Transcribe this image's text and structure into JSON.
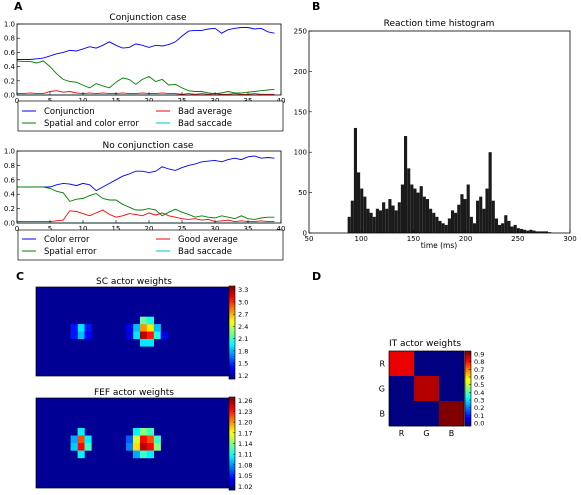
{
  "panel_letters": {
    "a": "A",
    "b": "B",
    "c": "C",
    "d": "D"
  },
  "colors": {
    "blue": "#0000ff",
    "red": "#ff0000",
    "green": "#008000",
    "cyan": "#00bfbf",
    "bar": "#1a1a1a"
  },
  "chart_data": [
    {
      "id": "conj",
      "type": "line",
      "title": "Conjunction case",
      "xlim": [
        0,
        40
      ],
      "ylim": [
        0,
        1.0
      ],
      "xticks": [
        "0",
        "5",
        "10",
        "15",
        "20",
        "25",
        "30",
        "35",
        "40"
      ],
      "yticks": [
        "0.0",
        "0.2",
        "0.4",
        "0.6",
        "0.8",
        "1.0"
      ],
      "legend": {
        "placement": "below",
        "entries": [
          "Conjunction",
          "Bad average",
          "Spatial and color error",
          "Bad saccade"
        ]
      },
      "series": [
        {
          "name": "Conjunction",
          "color": "blue",
          "x": [
            0,
            1,
            2,
            3,
            4,
            5,
            6,
            7,
            8,
            9,
            10,
            11,
            12,
            13,
            14,
            15,
            16,
            17,
            18,
            19,
            20,
            21,
            22,
            23,
            24,
            25,
            26,
            27,
            28,
            29,
            30,
            31,
            32,
            33,
            34,
            35,
            36,
            37,
            38,
            39
          ],
          "y": [
            0.5,
            0.5,
            0.5,
            0.51,
            0.52,
            0.55,
            0.58,
            0.6,
            0.63,
            0.62,
            0.65,
            0.68,
            0.66,
            0.7,
            0.75,
            0.7,
            0.66,
            0.67,
            0.72,
            0.7,
            0.67,
            0.7,
            0.69,
            0.71,
            0.75,
            0.83,
            0.9,
            0.91,
            0.91,
            0.93,
            0.94,
            0.87,
            0.92,
            0.94,
            0.95,
            0.95,
            0.93,
            0.94,
            0.89,
            0.87
          ]
        },
        {
          "name": "Bad average",
          "color": "red",
          "x": [
            0,
            1,
            2,
            3,
            4,
            5,
            6,
            7,
            8,
            9,
            10,
            11,
            12,
            13,
            14,
            15,
            16,
            17,
            18,
            19,
            20,
            21,
            22,
            23,
            24,
            25,
            26,
            27,
            28,
            29,
            30,
            31,
            32,
            33,
            34,
            35,
            36,
            37,
            38,
            39
          ],
          "y": [
            0.02,
            0.02,
            0.03,
            0.02,
            0.02,
            0.05,
            0.06,
            0.04,
            0.05,
            0.03,
            0.02,
            0.03,
            0.02,
            0.03,
            0.02,
            0.02,
            0.03,
            0.02,
            0.02,
            0.03,
            0.02,
            0.02,
            0.03,
            0.02,
            0.02,
            0.01,
            0.02,
            0.01,
            0.02,
            0.01,
            0.02,
            0.01,
            0.01,
            0.02,
            0.01,
            0.01,
            0.02,
            0.01,
            0.01,
            0.01
          ]
        },
        {
          "name": "Spatial and color error",
          "color": "green",
          "x": [
            0,
            1,
            2,
            3,
            4,
            5,
            6,
            7,
            8,
            9,
            10,
            11,
            12,
            13,
            14,
            15,
            16,
            17,
            18,
            19,
            20,
            21,
            22,
            23,
            24,
            25,
            26,
            27,
            28,
            29,
            30,
            31,
            32,
            33,
            34,
            35,
            36,
            37,
            38,
            39
          ],
          "y": [
            0.48,
            0.47,
            0.47,
            0.45,
            0.48,
            0.4,
            0.3,
            0.22,
            0.19,
            0.18,
            0.14,
            0.1,
            0.16,
            0.13,
            0.1,
            0.18,
            0.24,
            0.22,
            0.15,
            0.22,
            0.26,
            0.19,
            0.22,
            0.14,
            0.15,
            0.1,
            0.06,
            0.05,
            0.05,
            0.03,
            0.02,
            0.03,
            0.05,
            0.03,
            0.03,
            0.04,
            0.05,
            0.06,
            0.07,
            0.08
          ]
        },
        {
          "name": "Bad saccade",
          "color": "cyan",
          "x": [
            0,
            39
          ],
          "y": [
            0.0,
            0.0
          ]
        }
      ]
    },
    {
      "id": "noconj",
      "type": "line",
      "title": "No conjunction case",
      "xlim": [
        0,
        40
      ],
      "ylim": [
        0,
        1.0
      ],
      "xticks": [
        "0",
        "5",
        "10",
        "15",
        "20",
        "25",
        "30",
        "35",
        "40"
      ],
      "yticks": [
        "0.0",
        "0.2",
        "0.4",
        "0.6",
        "0.8",
        "1.0"
      ],
      "legend": {
        "placement": "below",
        "entries": [
          "Color error",
          "Good average",
          "Spatial error",
          "Bad saccade"
        ]
      },
      "series": [
        {
          "name": "Color error",
          "color": "blue",
          "x": [
            0,
            1,
            2,
            3,
            4,
            5,
            6,
            7,
            8,
            9,
            10,
            11,
            12,
            13,
            14,
            15,
            16,
            17,
            18,
            19,
            20,
            21,
            22,
            23,
            24,
            25,
            26,
            27,
            28,
            29,
            30,
            31,
            32,
            33,
            34,
            35,
            36,
            37,
            38,
            39
          ],
          "y": [
            0.5,
            0.5,
            0.5,
            0.5,
            0.5,
            0.5,
            0.53,
            0.55,
            0.54,
            0.52,
            0.55,
            0.53,
            0.45,
            0.5,
            0.55,
            0.6,
            0.65,
            0.68,
            0.72,
            0.72,
            0.7,
            0.72,
            0.78,
            0.75,
            0.73,
            0.77,
            0.8,
            0.82,
            0.85,
            0.86,
            0.87,
            0.85,
            0.88,
            0.9,
            0.88,
            0.92,
            0.93,
            0.9,
            0.91,
            0.9
          ]
        },
        {
          "name": "Good average",
          "color": "red",
          "x": [
            0,
            1,
            2,
            3,
            4,
            5,
            6,
            7,
            8,
            9,
            10,
            11,
            12,
            13,
            14,
            15,
            16,
            17,
            18,
            19,
            20,
            21,
            22,
            23,
            24,
            25,
            26,
            27,
            28,
            29,
            30,
            31,
            32,
            33,
            34,
            35,
            36,
            37,
            38,
            39
          ],
          "y": [
            0.02,
            0.02,
            0.02,
            0.02,
            0.02,
            0.02,
            0.03,
            0.04,
            0.17,
            0.16,
            0.13,
            0.1,
            0.14,
            0.18,
            0.12,
            0.08,
            0.1,
            0.13,
            0.12,
            0.1,
            0.14,
            0.11,
            0.14,
            0.1,
            0.08,
            0.06,
            0.05,
            0.06,
            0.04,
            0.05,
            0.02,
            0.03,
            0.04,
            0.02,
            0.03,
            0.02,
            0.02,
            0.03,
            0.02,
            0.02
          ]
        },
        {
          "name": "Spatial error",
          "color": "green",
          "x": [
            0,
            1,
            2,
            3,
            4,
            5,
            6,
            7,
            8,
            9,
            10,
            11,
            12,
            13,
            14,
            15,
            16,
            17,
            18,
            19,
            20,
            21,
            22,
            23,
            24,
            25,
            26,
            27,
            28,
            29,
            30,
            31,
            32,
            33,
            34,
            35,
            36,
            37,
            38,
            39
          ],
          "y": [
            0.5,
            0.5,
            0.5,
            0.5,
            0.5,
            0.48,
            0.44,
            0.42,
            0.3,
            0.33,
            0.34,
            0.38,
            0.41,
            0.34,
            0.32,
            0.32,
            0.26,
            0.22,
            0.18,
            0.18,
            0.2,
            0.18,
            0.1,
            0.15,
            0.19,
            0.15,
            0.12,
            0.08,
            0.1,
            0.08,
            0.07,
            0.1,
            0.08,
            0.06,
            0.1,
            0.06,
            0.05,
            0.07,
            0.08,
            0.08
          ]
        },
        {
          "name": "Bad saccade",
          "color": "cyan",
          "x": [
            0,
            39
          ],
          "y": [
            0.0,
            0.0
          ]
        }
      ]
    },
    {
      "id": "rt",
      "type": "bar",
      "title": "Reaction time histogram",
      "xlabel": "time (ms)",
      "xlim": [
        50,
        300
      ],
      "ylim": [
        0,
        250
      ],
      "xticks": [
        "50",
        "100",
        "150",
        "200",
        "250",
        "300"
      ],
      "yticks": [
        "0",
        "50",
        "100",
        "150",
        "200",
        "250"
      ],
      "bin_width": 3,
      "bins": [
        87,
        90,
        93,
        96,
        99,
        102,
        105,
        108,
        111,
        114,
        117,
        120,
        123,
        126,
        129,
        132,
        135,
        138,
        141,
        144,
        147,
        150,
        153,
        156,
        159,
        162,
        165,
        168,
        171,
        174,
        177,
        180,
        183,
        186,
        189,
        192,
        195,
        198,
        201,
        204,
        207,
        210,
        213,
        216,
        219,
        222,
        225,
        228,
        231,
        234,
        237,
        240,
        243,
        246,
        249,
        252,
        255,
        258,
        261,
        264,
        267,
        270,
        273,
        276,
        279
      ],
      "values": [
        20,
        40,
        130,
        75,
        55,
        45,
        30,
        25,
        20,
        30,
        28,
        38,
        30,
        42,
        34,
        28,
        38,
        60,
        120,
        80,
        60,
        55,
        50,
        58,
        45,
        42,
        30,
        25,
        20,
        15,
        12,
        10,
        18,
        28,
        25,
        35,
        48,
        42,
        60,
        20,
        12,
        40,
        45,
        30,
        55,
        100,
        40,
        18,
        10,
        12,
        22,
        15,
        8,
        10,
        6,
        5,
        4,
        3,
        4,
        3,
        2,
        2,
        2,
        2,
        1
      ]
    },
    {
      "id": "sc",
      "type": "heatmap",
      "title": "SC actor weights",
      "colorbar_ticks": [
        "3.3",
        "3.0",
        "2.7",
        "2.4",
        "2.1",
        "1.8",
        "1.5",
        "1.2"
      ],
      "cmin": 1.05,
      "cmax": 3.45,
      "grid_size": [
        28,
        12
      ],
      "hotspots": [
        {
          "col": 6,
          "row": 5,
          "value": 1.9
        },
        {
          "col": 6,
          "row": 6,
          "value": 1.8
        },
        {
          "col": 5,
          "row": 5,
          "value": 1.4
        },
        {
          "col": 7,
          "row": 5,
          "value": 1.4
        },
        {
          "col": 5,
          "row": 6,
          "value": 1.4
        },
        {
          "col": 7,
          "row": 6,
          "value": 1.35
        },
        {
          "col": 14,
          "row": 5,
          "value": 1.8
        },
        {
          "col": 15,
          "row": 5,
          "value": 2.8
        },
        {
          "col": 16,
          "row": 5,
          "value": 2.6
        },
        {
          "col": 17,
          "row": 5,
          "value": 1.8
        },
        {
          "col": 15,
          "row": 4,
          "value": 2.2
        },
        {
          "col": 16,
          "row": 4,
          "value": 2.0
        },
        {
          "col": 14,
          "row": 6,
          "value": 1.9
        },
        {
          "col": 15,
          "row": 6,
          "value": 3.3
        },
        {
          "col": 16,
          "row": 6,
          "value": 3.1
        },
        {
          "col": 17,
          "row": 6,
          "value": 2.0
        },
        {
          "col": 15,
          "row": 7,
          "value": 1.9
        },
        {
          "col": 16,
          "row": 7,
          "value": 1.9
        },
        {
          "col": 13,
          "row": 5,
          "value": 1.3
        },
        {
          "col": 13,
          "row": 6,
          "value": 1.3
        },
        {
          "col": 18,
          "row": 6,
          "value": 1.3
        }
      ]
    },
    {
      "id": "fef",
      "type": "heatmap",
      "title": "FEF actor weights",
      "colorbar_ticks": [
        "1.26",
        "1.23",
        "1.20",
        "1.17",
        "1.14",
        "1.11",
        "1.08",
        "1.05",
        "1.02"
      ],
      "cmin": 1.0,
      "cmax": 1.275,
      "grid_size": [
        28,
        12
      ],
      "hotspots": [
        {
          "col": 6,
          "row": 4,
          "value": 1.1
        },
        {
          "col": 6,
          "row": 5,
          "value": 1.22
        },
        {
          "col": 6,
          "row": 6,
          "value": 1.24
        },
        {
          "col": 6,
          "row": 7,
          "value": 1.1
        },
        {
          "col": 5,
          "row": 5,
          "value": 1.08
        },
        {
          "col": 7,
          "row": 5,
          "value": 1.1
        },
        {
          "col": 5,
          "row": 6,
          "value": 1.09
        },
        {
          "col": 7,
          "row": 6,
          "value": 1.12
        },
        {
          "col": 13,
          "row": 5,
          "value": 1.06
        },
        {
          "col": 13,
          "row": 6,
          "value": 1.07
        },
        {
          "col": 14,
          "row": 4,
          "value": 1.1
        },
        {
          "col": 14,
          "row": 5,
          "value": 1.16
        },
        {
          "col": 14,
          "row": 6,
          "value": 1.18
        },
        {
          "col": 14,
          "row": 7,
          "value": 1.08
        },
        {
          "col": 15,
          "row": 4,
          "value": 1.14
        },
        {
          "col": 15,
          "row": 5,
          "value": 1.24
        },
        {
          "col": 15,
          "row": 6,
          "value": 1.26
        },
        {
          "col": 15,
          "row": 7,
          "value": 1.12
        },
        {
          "col": 16,
          "row": 4,
          "value": 1.12
        },
        {
          "col": 16,
          "row": 5,
          "value": 1.22
        },
        {
          "col": 16,
          "row": 6,
          "value": 1.24
        },
        {
          "col": 16,
          "row": 7,
          "value": 1.1
        },
        {
          "col": 17,
          "row": 5,
          "value": 1.12
        },
        {
          "col": 17,
          "row": 6,
          "value": 1.14
        }
      ]
    },
    {
      "id": "it",
      "type": "heatmap",
      "title": "IT actor weights",
      "xticks": [
        "R",
        "G",
        "B"
      ],
      "yticks": [
        "R",
        "G",
        "B"
      ],
      "colorbar_ticks": [
        "0.9",
        "0.8",
        "0.7",
        "0.6",
        "0.5",
        "0.4",
        "0.3",
        "0.2",
        "0.1",
        "0.0"
      ],
      "cmin": 0.0,
      "cmax": 0.95,
      "matrix": [
        [
          0.85,
          0.0,
          0.0
        ],
        [
          0.0,
          0.9,
          0.0
        ],
        [
          0.0,
          0.0,
          0.95
        ]
      ]
    }
  ]
}
